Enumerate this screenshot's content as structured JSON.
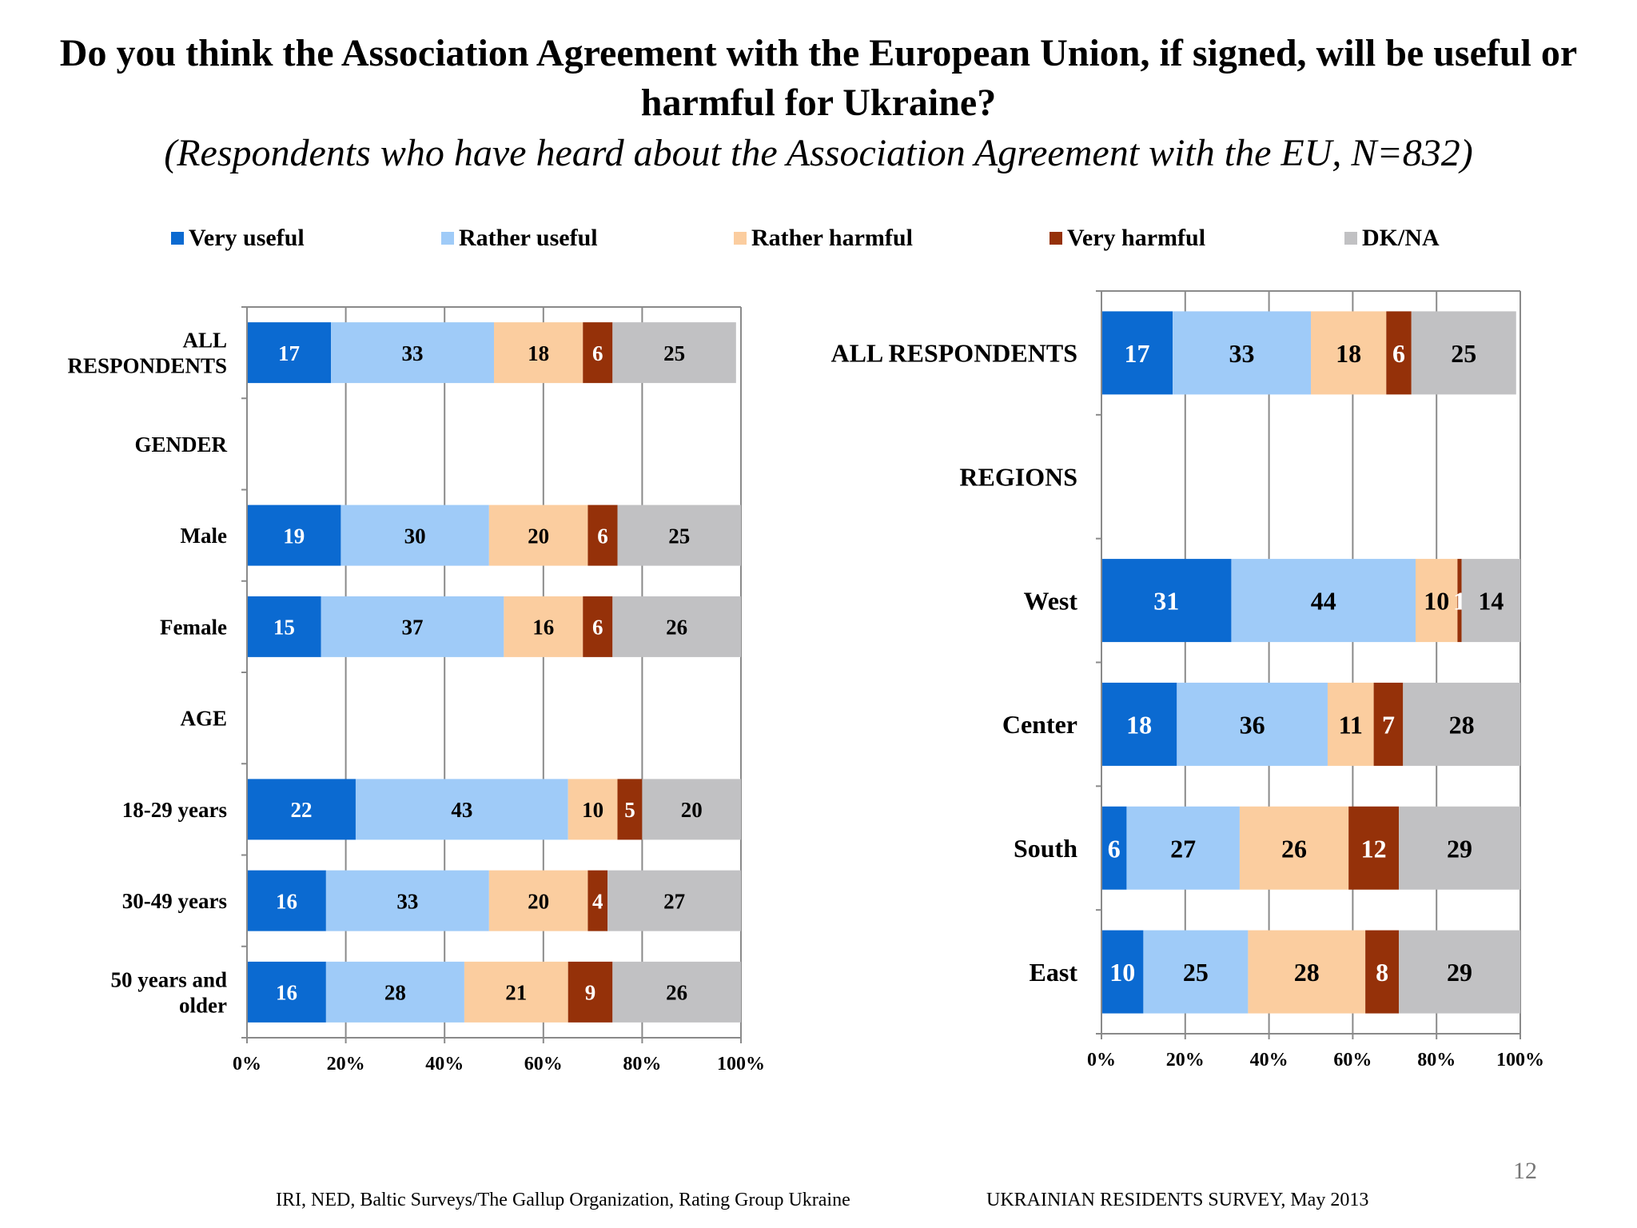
{
  "title": "Do you think the Association Agreement with the European Union, if signed, will be useful or harmful for Ukraine?",
  "subtitle": "(Respondents who have heard about the Association Agreement with the EU, N=832)",
  "legend": [
    {
      "label": "Very useful",
      "color": "#0b6ad1"
    },
    {
      "label": "Rather useful",
      "color": "#9fcbf8"
    },
    {
      "label": "Rather harmful",
      "color": "#fbcd9f"
    },
    {
      "label": "Very harmful",
      "color": "#953109"
    },
    {
      "label": "DK/NA",
      "color": "#c1c1c3"
    }
  ],
  "footer": {
    "source": "IRI, NED,  Baltic Surveys/The Gallup Organization, Rating Group Ukraine",
    "survey": "UKRAINIAN RESIDENTS SURVEY, May  2013",
    "page": "12"
  },
  "chart_data": [
    {
      "type": "bar",
      "orientation": "horizontal-stacked-100",
      "series_names": [
        "Very useful",
        "Rather useful",
        "Rather harmful",
        "Very harmful",
        "DK/NA"
      ],
      "x_ticks": [
        "0%",
        "20%",
        "40%",
        "60%",
        "80%",
        "100%"
      ],
      "xlim": [
        0,
        100
      ],
      "categories": [
        {
          "label": "ALL RESPONDENTS",
          "label_lines": [
            "ALL",
            "RESPONDENTS"
          ],
          "values": [
            17,
            33,
            18,
            6,
            25
          ],
          "labels": [
            "17",
            "33",
            "18",
            "6",
            "25"
          ]
        },
        {
          "label": "GENDER",
          "label_lines": [
            "GENDER"
          ],
          "values": null
        },
        {
          "label": "Male",
          "label_lines": [
            "Male"
          ],
          "values": [
            19,
            30,
            20,
            6,
            25
          ],
          "labels": [
            "19",
            "30",
            "20",
            "6",
            "25"
          ]
        },
        {
          "label": "Female",
          "label_lines": [
            "Female"
          ],
          "values": [
            15,
            37,
            16,
            6,
            26
          ],
          "labels": [
            "15",
            "37",
            "16",
            "6",
            "26"
          ]
        },
        {
          "label": "AGE",
          "label_lines": [
            "AGE"
          ],
          "values": null
        },
        {
          "label": "18-29 years",
          "label_lines": [
            "18-29 years"
          ],
          "values": [
            22,
            43,
            10,
            5,
            20
          ],
          "labels": [
            "22",
            "43",
            "10",
            "5",
            "20"
          ]
        },
        {
          "label": "30-49 years",
          "label_lines": [
            "30-49 years"
          ],
          "values": [
            16,
            33,
            20,
            4,
            27
          ],
          "labels": [
            "16",
            "33",
            "20",
            "4",
            "27"
          ]
        },
        {
          "label": "50 years and older",
          "label_lines": [
            "50 years and",
            "older"
          ],
          "values": [
            16,
            28,
            21,
            9,
            26
          ],
          "labels": [
            "16",
            "28",
            "21",
            "9",
            "26"
          ]
        }
      ]
    },
    {
      "type": "bar",
      "orientation": "horizontal-stacked-100",
      "series_names": [
        "Very useful",
        "Rather useful",
        "Rather harmful",
        "Very harmful",
        "DK/NA"
      ],
      "x_ticks": [
        "0%",
        "20%",
        "40%",
        "60%",
        "80%",
        "100%"
      ],
      "xlim": [
        0,
        100
      ],
      "categories": [
        {
          "label": "ALL RESPONDENTS",
          "label_lines": [
            "ALL RESPONDENTS"
          ],
          "values": [
            17,
            33,
            18,
            6,
            25
          ],
          "labels": [
            "17",
            "33",
            "18",
            "6",
            "25"
          ]
        },
        {
          "label": "REGIONS",
          "label_lines": [
            "REGIONS"
          ],
          "values": null
        },
        {
          "label": "West",
          "label_lines": [
            "West"
          ],
          "values": [
            31,
            44,
            10,
            1,
            14
          ],
          "labels": [
            "31",
            "44",
            "10",
            "1",
            "14"
          ]
        },
        {
          "label": "Center",
          "label_lines": [
            "Center"
          ],
          "values": [
            18,
            36,
            11,
            7,
            28
          ],
          "labels": [
            "18",
            "36",
            "11",
            "7",
            "28"
          ]
        },
        {
          "label": "South",
          "label_lines": [
            "South"
          ],
          "values": [
            6,
            27,
            26,
            12,
            29
          ],
          "labels": [
            "6",
            "27",
            "26",
            "12",
            "29"
          ]
        },
        {
          "label": "East",
          "label_lines": [
            "East"
          ],
          "values": [
            10,
            25,
            28,
            8,
            29
          ],
          "labels": [
            "10",
            "25",
            "28",
            "8",
            "29"
          ]
        }
      ]
    }
  ]
}
